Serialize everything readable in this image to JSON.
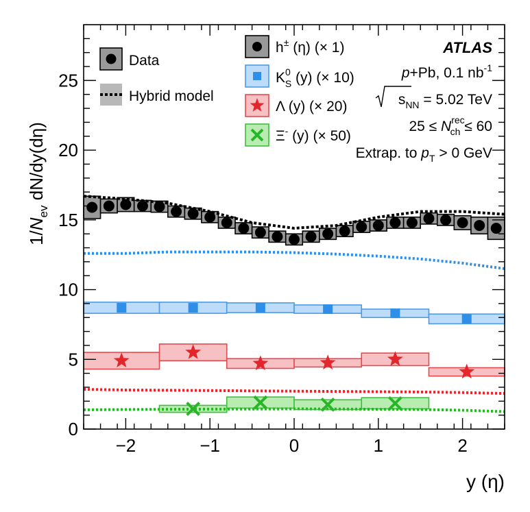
{
  "chart_data": {
    "type": "scatter",
    "xlabel": "y (η)",
    "ylabel": "1/N_ev dN/dy(dη)",
    "xlim": [
      -2.5,
      2.5
    ],
    "ylim": [
      0,
      29
    ],
    "x_ticks": [
      -2,
      -1,
      0,
      1,
      2
    ],
    "x_tick_labels": [
      "−2",
      "−1",
      "0",
      "1",
      "2"
    ],
    "y_ticks": [
      0,
      5,
      10,
      15,
      20,
      25
    ],
    "y_tick_labels": [
      "0",
      "5",
      "10",
      "15",
      "20",
      "25"
    ],
    "experiment": "ATLAS",
    "info_lines": {
      "system": "p+Pb, 0.1 nb⁻¹",
      "energy": "√sNN = 5.02 TeV",
      "multiplicity": "25 ≤ N_ch^rec ≤ 60",
      "extrapolation": "Extrap. to p_T > 0 GeV"
    },
    "legend_main": {
      "data": "Data",
      "model": "Hybrid model"
    },
    "series": [
      {
        "name": "h± (η) (× 1)",
        "key": "hadrons",
        "marker": "circle",
        "color": "#000000",
        "fill": "#999999",
        "edge": "#000000",
        "x_bins": [
          [
            -2.5,
            -2.3
          ],
          [
            -2.3,
            -2.1
          ],
          [
            -2.1,
            -1.9
          ],
          [
            -1.9,
            -1.7
          ],
          [
            -1.7,
            -1.5
          ],
          [
            -1.5,
            -1.3
          ],
          [
            -1.3,
            -1.1
          ],
          [
            -1.1,
            -0.9
          ],
          [
            -0.9,
            -0.7
          ],
          [
            -0.7,
            -0.5
          ],
          [
            -0.5,
            -0.3
          ],
          [
            -0.3,
            -0.1
          ],
          [
            -0.1,
            0.1
          ],
          [
            0.1,
            0.3
          ],
          [
            0.3,
            0.5
          ],
          [
            0.5,
            0.7
          ],
          [
            0.7,
            0.9
          ],
          [
            0.9,
            1.1
          ],
          [
            1.1,
            1.3
          ],
          [
            1.3,
            1.5
          ],
          [
            1.5,
            1.7
          ],
          [
            1.7,
            1.9
          ],
          [
            1.9,
            2.1
          ],
          [
            2.1,
            2.3
          ],
          [
            2.3,
            2.5
          ]
        ],
        "x": [
          -2.4,
          -2.2,
          -2.0,
          -1.8,
          -1.6,
          -1.4,
          -1.2,
          -1.0,
          -0.8,
          -0.6,
          -0.4,
          -0.2,
          0.0,
          0.2,
          0.4,
          0.6,
          0.8,
          1.0,
          1.2,
          1.4,
          1.6,
          1.8,
          2.0,
          2.2,
          2.4
        ],
        "values": [
          15.9,
          16.0,
          16.1,
          16.0,
          15.95,
          15.6,
          15.45,
          15.2,
          14.8,
          14.4,
          14.1,
          13.8,
          13.6,
          13.8,
          14.0,
          14.2,
          14.5,
          14.6,
          14.8,
          14.8,
          15.1,
          15.0,
          14.8,
          14.6,
          14.4
        ],
        "syst_err": [
          0.8,
          0.5,
          0.5,
          0.4,
          0.4,
          0.4,
          0.4,
          0.4,
          0.4,
          0.4,
          0.4,
          0.4,
          0.4,
          0.4,
          0.4,
          0.4,
          0.4,
          0.4,
          0.4,
          0.4,
          0.4,
          0.4,
          0.5,
          0.6,
          0.8
        ],
        "model": {
          "x": [
            -2.5,
            -2.0,
            -1.5,
            -1.0,
            -0.5,
            0.0,
            0.5,
            1.0,
            1.5,
            2.0,
            2.5
          ],
          "values": [
            16.7,
            16.5,
            16.2,
            15.6,
            14.8,
            14.4,
            14.6,
            15.2,
            15.6,
            15.6,
            15.4
          ]
        }
      },
      {
        "name": "K⁰S (y) (× 10)",
        "key": "kshort",
        "marker": "square",
        "color": "#2f8fe8",
        "fill": "#bcdcfa",
        "edge": "#4d9be6",
        "x_bins": [
          [
            -2.5,
            -1.6
          ],
          [
            -1.6,
            -0.8
          ],
          [
            -0.8,
            0.0
          ],
          [
            0.0,
            0.8
          ],
          [
            0.8,
            1.6
          ],
          [
            1.6,
            2.5
          ]
        ],
        "x": [
          -2.05,
          -1.2,
          -0.4,
          0.4,
          1.2,
          2.05
        ],
        "values": [
          8.7,
          8.7,
          8.7,
          8.6,
          8.3,
          7.9
        ],
        "syst_err": [
          0.4,
          0.4,
          0.35,
          0.3,
          0.3,
          0.35
        ],
        "model": {
          "x": [
            -2.5,
            -2.0,
            -1.5,
            -1.0,
            -0.5,
            0.0,
            0.5,
            1.0,
            1.5,
            2.0,
            2.5
          ],
          "values": [
            12.6,
            12.6,
            12.7,
            12.7,
            12.7,
            12.65,
            12.55,
            12.4,
            12.2,
            11.9,
            11.5
          ]
        }
      },
      {
        "name": "Λ (y) (× 20)",
        "key": "lambda",
        "marker": "star",
        "color": "#e3262c",
        "fill": "#f7c1c3",
        "edge": "#e34a50",
        "x_bins": [
          [
            -2.5,
            -1.6
          ],
          [
            -1.6,
            -0.8
          ],
          [
            -0.8,
            0.0
          ],
          [
            0.0,
            0.8
          ],
          [
            0.8,
            1.6
          ],
          [
            1.6,
            2.5
          ]
        ],
        "x": [
          -2.05,
          -1.2,
          -0.4,
          0.4,
          1.2,
          2.05
        ],
        "values": [
          4.9,
          5.5,
          4.7,
          4.75,
          5.0,
          4.1
        ],
        "syst_err": [
          0.6,
          0.6,
          0.35,
          0.3,
          0.45,
          0.3
        ],
        "model": {
          "x": [
            -2.5,
            -2.0,
            -1.5,
            -1.0,
            -0.5,
            0.0,
            0.5,
            1.0,
            1.5,
            2.0,
            2.5
          ],
          "values": [
            2.85,
            2.8,
            2.78,
            2.76,
            2.74,
            2.72,
            2.7,
            2.68,
            2.66,
            2.62,
            2.55
          ]
        }
      },
      {
        "name": "Ξ⁻ (y) (× 50)",
        "key": "xi",
        "marker": "cross",
        "color": "#28b628",
        "fill": "#b8ecb0",
        "edge": "#3cbf3c",
        "x_bins": [
          [
            -1.6,
            -0.8
          ],
          [
            -0.8,
            0.0
          ],
          [
            0.0,
            0.8
          ],
          [
            0.8,
            1.6
          ]
        ],
        "x": [
          -1.2,
          -0.4,
          0.4,
          1.2
        ],
        "values": [
          1.45,
          1.9,
          1.75,
          1.85
        ],
        "syst_err": [
          0.25,
          0.4,
          0.35,
          0.4
        ],
        "model": {
          "x": [
            -2.5,
            -2.0,
            -1.5,
            -1.0,
            -0.5,
            0.0,
            0.5,
            1.0,
            1.5,
            2.0,
            2.5
          ],
          "values": [
            1.38,
            1.4,
            1.42,
            1.43,
            1.44,
            1.45,
            1.44,
            1.42,
            1.4,
            1.35,
            1.25
          ]
        }
      }
    ]
  }
}
